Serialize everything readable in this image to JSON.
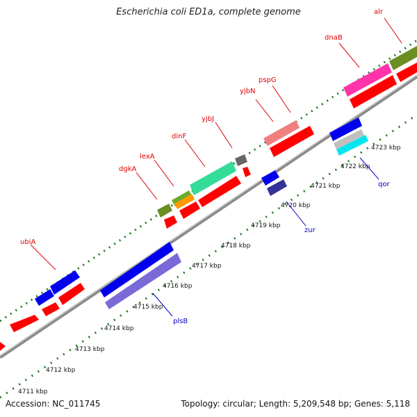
{
  "title": "Escherichia coli ED1a, complete genome",
  "footer": {
    "accession": "Accession: NC_011745",
    "summary": "Topology: circular; Length: 5,209,548 bp; Genes: 5,118"
  },
  "colors": {
    "backbone": "#9a9a9a",
    "tick": "#1f7a1f",
    "forward_label": "#e00000",
    "reverse_label": "#0000c0",
    "red_gene": "#ff0000",
    "blue_gene": "#0000ee"
  },
  "scale_labels": [
    "4711 kbp",
    "4712 kbp",
    "4713 kbp",
    "4714 kbp",
    "4715 kbp",
    "4716 kbp",
    "4717 kbp",
    "4718 kbp",
    "4719 kbp",
    "4720 kbp",
    "4721 kbp",
    "4722 kbp",
    "4723 kbp"
  ],
  "gene_labels": {
    "forward": [
      "ubiA",
      "dgkA",
      "lexA",
      "dinF",
      "yjbJ",
      "yjbN",
      "pspG",
      "dnaB",
      "alr"
    ],
    "reverse": [
      "plsB",
      "zur",
      "qor"
    ]
  }
}
